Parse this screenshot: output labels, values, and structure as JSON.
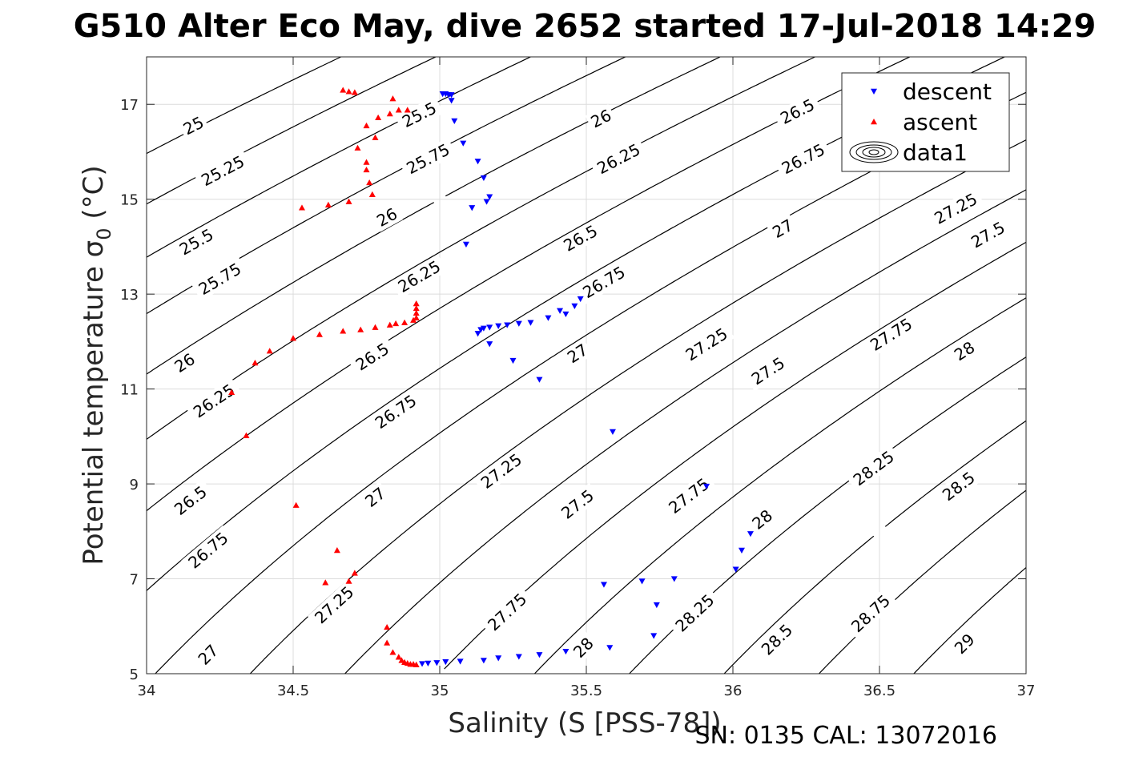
{
  "figure": {
    "title": "G510 Alter Eco May, dive 2652 started 17-Jul-2018 14:29",
    "footer": "SN: 0135  CAL: 13072016"
  },
  "colors": {
    "descent": "#0000ff",
    "ascent": "#ff0000",
    "contour": "#000000",
    "grid": "#dcdcdc",
    "axes": "#262626"
  },
  "chart_data": {
    "type": "scatter",
    "xlabel": "Salinity (S [PSS-78])",
    "ylabel": "Potential temperature σ",
    "ylabel_subscript": "0",
    "ylabel_unit": " (°C)",
    "xlim": [
      34,
      37
    ],
    "ylim": [
      5,
      18
    ],
    "xticks": [
      34,
      34.5,
      35,
      35.5,
      36,
      36.5,
      37
    ],
    "yticks": [
      5,
      7,
      9,
      11,
      13,
      15,
      17
    ],
    "grid": true,
    "legend": {
      "position": "top-right",
      "entries": [
        {
          "name": "descent",
          "marker": "triangle-down",
          "color": "#0000ff"
        },
        {
          "name": "ascent",
          "marker": "triangle-up",
          "color": "#ff0000"
        },
        {
          "name": "data1",
          "marker": "contour-icon",
          "color": "#000000"
        }
      ]
    },
    "series": [
      {
        "name": "descent",
        "marker": "triangle-down",
        "points": [
          [
            35.01,
            17.22
          ],
          [
            35.02,
            17.22
          ],
          [
            35.03,
            17.2
          ],
          [
            35.04,
            17.2
          ],
          [
            35.04,
            17.08
          ],
          [
            35.05,
            16.65
          ],
          [
            35.08,
            16.18
          ],
          [
            35.13,
            15.8
          ],
          [
            35.15,
            15.45
          ],
          [
            35.17,
            15.05
          ],
          [
            35.16,
            14.95
          ],
          [
            35.11,
            14.82
          ],
          [
            35.09,
            14.05
          ],
          [
            35.13,
            12.17
          ],
          [
            35.14,
            12.25
          ],
          [
            35.15,
            12.28
          ],
          [
            35.17,
            12.3
          ],
          [
            35.2,
            12.33
          ],
          [
            35.23,
            12.35
          ],
          [
            35.27,
            12.38
          ],
          [
            35.31,
            12.4
          ],
          [
            35.37,
            12.5
          ],
          [
            35.41,
            12.65
          ],
          [
            35.43,
            12.58
          ],
          [
            35.46,
            12.75
          ],
          [
            35.48,
            12.9
          ],
          [
            35.17,
            11.95
          ],
          [
            35.25,
            11.6
          ],
          [
            35.34,
            11.2
          ],
          [
            35.59,
            10.1
          ],
          [
            35.91,
            8.95
          ],
          [
            36.06,
            7.95
          ],
          [
            36.03,
            7.6
          ],
          [
            36.01,
            7.2
          ],
          [
            35.8,
            7.0
          ],
          [
            35.69,
            6.95
          ],
          [
            35.56,
            6.88
          ],
          [
            35.74,
            6.45
          ],
          [
            35.73,
            5.8
          ],
          [
            35.58,
            5.55
          ],
          [
            35.43,
            5.47
          ],
          [
            35.34,
            5.4
          ],
          [
            35.27,
            5.36
          ],
          [
            35.2,
            5.33
          ],
          [
            35.15,
            5.28
          ],
          [
            35.07,
            5.26
          ],
          [
            35.02,
            5.25
          ],
          [
            34.99,
            5.23
          ],
          [
            34.96,
            5.22
          ],
          [
            34.94,
            5.21
          ]
        ]
      },
      {
        "name": "ascent",
        "marker": "triangle-up",
        "points": [
          [
            34.67,
            17.3
          ],
          [
            34.69,
            17.27
          ],
          [
            34.71,
            17.25
          ],
          [
            34.84,
            17.12
          ],
          [
            34.86,
            16.88
          ],
          [
            34.89,
            16.88
          ],
          [
            34.83,
            16.8
          ],
          [
            34.79,
            16.72
          ],
          [
            34.75,
            16.55
          ],
          [
            34.78,
            16.3
          ],
          [
            34.72,
            16.08
          ],
          [
            34.75,
            15.78
          ],
          [
            34.75,
            15.62
          ],
          [
            34.76,
            15.35
          ],
          [
            34.77,
            15.1
          ],
          [
            34.69,
            14.95
          ],
          [
            34.62,
            14.88
          ],
          [
            34.53,
            14.82
          ],
          [
            34.92,
            12.8
          ],
          [
            34.92,
            12.7
          ],
          [
            34.92,
            12.6
          ],
          [
            34.92,
            12.5
          ],
          [
            34.91,
            12.45
          ],
          [
            34.88,
            12.4
          ],
          [
            34.85,
            12.38
          ],
          [
            34.83,
            12.35
          ],
          [
            34.78,
            12.3
          ],
          [
            34.73,
            12.25
          ],
          [
            34.67,
            12.22
          ],
          [
            34.59,
            12.15
          ],
          [
            34.5,
            12.07
          ],
          [
            34.42,
            11.8
          ],
          [
            34.37,
            11.55
          ],
          [
            34.29,
            10.93
          ],
          [
            34.34,
            10.02
          ],
          [
            34.51,
            8.55
          ],
          [
            34.65,
            7.6
          ],
          [
            34.71,
            7.12
          ],
          [
            34.69,
            6.95
          ],
          [
            34.61,
            6.92
          ],
          [
            34.82,
            5.98
          ],
          [
            34.82,
            5.65
          ],
          [
            34.84,
            5.45
          ],
          [
            34.86,
            5.35
          ],
          [
            34.87,
            5.28
          ],
          [
            34.88,
            5.24
          ],
          [
            34.89,
            5.22
          ],
          [
            34.9,
            5.2
          ],
          [
            34.91,
            5.2
          ],
          [
            34.92,
            5.19
          ]
        ]
      },
      {
        "name": "data1",
        "type": "contour",
        "quantity": "sigma0",
        "levels": [
          25,
          25.25,
          25.5,
          25.75,
          26,
          26.25,
          26.5,
          26.75,
          27,
          27.25,
          27.5,
          27.75,
          28,
          28.25,
          28.5,
          28.75,
          29
        ],
        "labels": [
          {
            "text": "25",
            "s": 34.16,
            "t": 16.55
          },
          {
            "text": "25.25",
            "s": 34.26,
            "t": 15.6
          },
          {
            "text": "25.5",
            "s": 34.17,
            "t": 14.1
          },
          {
            "text": "25.75",
            "s": 34.25,
            "t": 13.32
          },
          {
            "text": "26",
            "s": 34.13,
            "t": 11.55
          },
          {
            "text": "26.25",
            "s": 34.23,
            "t": 10.75
          },
          {
            "text": "26.5",
            "s": 34.15,
            "t": 8.65
          },
          {
            "text": "26.75",
            "s": 34.21,
            "t": 7.6
          },
          {
            "text": "27",
            "s": 34.21,
            "t": 5.4
          },
          {
            "text": "25.5",
            "s": 34.93,
            "t": 16.78
          },
          {
            "text": "25.75",
            "s": 34.96,
            "t": 15.85
          },
          {
            "text": "26",
            "s": 34.82,
            "t": 14.62
          },
          {
            "text": "26.25",
            "s": 34.93,
            "t": 13.37
          },
          {
            "text": "26.5",
            "s": 34.77,
            "t": 11.68
          },
          {
            "text": "26.75",
            "s": 34.85,
            "t": 10.52
          },
          {
            "text": "27",
            "s": 34.78,
            "t": 8.72
          },
          {
            "text": "27.25",
            "s": 34.64,
            "t": 6.45
          },
          {
            "text": "26",
            "s": 35.55,
            "t": 16.7
          },
          {
            "text": "26.25",
            "s": 35.61,
            "t": 15.85
          },
          {
            "text": "26.5",
            "s": 35.48,
            "t": 14.18
          },
          {
            "text": "26.75",
            "s": 35.56,
            "t": 13.25
          },
          {
            "text": "27",
            "s": 35.47,
            "t": 11.75
          },
          {
            "text": "27.25",
            "s": 35.21,
            "t": 9.27
          },
          {
            "text": "27.5",
            "s": 35.47,
            "t": 8.57
          },
          {
            "text": "27.75",
            "s": 35.23,
            "t": 6.3
          },
          {
            "text": "28",
            "s": 35.49,
            "t": 5.55
          },
          {
            "text": "26.5",
            "s": 36.22,
            "t": 16.85
          },
          {
            "text": "26.75",
            "s": 36.24,
            "t": 15.85
          },
          {
            "text": "27",
            "s": 36.17,
            "t": 14.38
          },
          {
            "text": "27.25",
            "s": 35.91,
            "t": 11.94
          },
          {
            "text": "27.5",
            "s": 36.12,
            "t": 11.38
          },
          {
            "text": "27.75",
            "s": 35.85,
            "t": 8.75
          },
          {
            "text": "28",
            "s": 36.1,
            "t": 8.25
          },
          {
            "text": "28.25",
            "s": 35.87,
            "t": 6.28
          },
          {
            "text": "28.5",
            "s": 36.15,
            "t": 5.72
          },
          {
            "text": "27.25",
            "s": 36.76,
            "t": 14.8
          },
          {
            "text": "27.5",
            "s": 36.87,
            "t": 14.25
          },
          {
            "text": "27.75",
            "s": 36.54,
            "t": 12.15
          },
          {
            "text": "28",
            "s": 36.79,
            "t": 11.8
          },
          {
            "text": "28.25",
            "s": 36.48,
            "t": 9.33
          },
          {
            "text": "28.5",
            "s": 36.77,
            "t": 8.95
          },
          {
            "text": "28.75",
            "s": 36.47,
            "t": 6.27
          },
          {
            "text": "29",
            "s": 36.79,
            "t": 5.63
          }
        ]
      }
    ]
  }
}
